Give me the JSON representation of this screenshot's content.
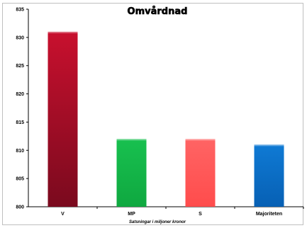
{
  "chart_data": {
    "type": "bar",
    "title": "Omvårdnad",
    "xlabel": "Satsningar i miljoner kronor",
    "ylabel": "",
    "categories": [
      "V",
      "MP",
      "S",
      "Majoriteten"
    ],
    "values": [
      831,
      812,
      812,
      811
    ],
    "colors": [
      "#b5122e",
      "#16b84a",
      "#ff5a5a",
      "#0a6fc8"
    ],
    "ylim": [
      800,
      835
    ],
    "yticks": [
      800,
      805,
      810,
      815,
      820,
      825,
      830,
      835
    ],
    "grid": false,
    "legend": "none"
  }
}
